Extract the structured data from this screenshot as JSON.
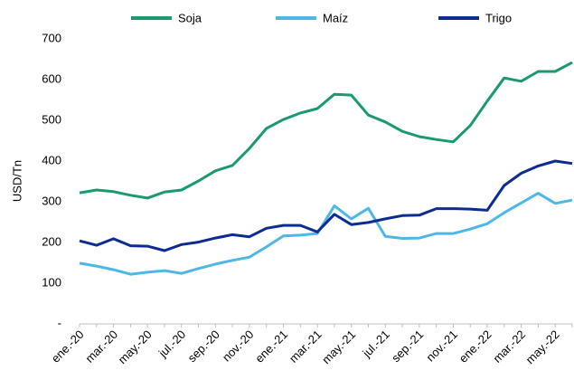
{
  "chart_data": {
    "type": "line",
    "y_label": "USD/Tn",
    "categories": [
      "ene.-20",
      null,
      "mar.-20",
      null,
      "may.-20",
      null,
      "jul.-20",
      null,
      "sep.-20",
      null,
      "nov.-20",
      null,
      "ene.-21",
      null,
      "mar.-21",
      null,
      "may.-21",
      null,
      "jul.-21",
      null,
      "sep.-21",
      null,
      "nov.-21",
      null,
      "ene.-22",
      null,
      "mar.-22",
      null,
      "may.-22",
      null
    ],
    "series": [
      {
        "name": "Soja",
        "color": "#1a9a6e",
        "values": [
          322,
          329,
          325,
          316,
          309,
          324,
          329,
          351,
          376,
          389,
          431,
          480,
          502,
          518,
          529,
          564,
          562,
          513,
          496,
          473,
          460,
          453,
          447,
          487,
          547,
          604,
          596,
          620,
          620,
          642
        ]
      },
      {
        "name": "Maíz",
        "color": "#4db8e8",
        "values": [
          149,
          142,
          133,
          122,
          127,
          131,
          124,
          136,
          147,
          156,
          164,
          189,
          216,
          218,
          222,
          290,
          258,
          284,
          215,
          210,
          211,
          222,
          222,
          233,
          246,
          273,
          297,
          321,
          296,
          304
        ]
      },
      {
        "name": "Trigo",
        "color": "#0d2c91",
        "values": [
          204,
          193,
          209,
          192,
          191,
          180,
          195,
          201,
          211,
          219,
          214,
          235,
          242,
          242,
          226,
          269,
          244,
          249,
          258,
          266,
          267,
          283,
          283,
          282,
          279,
          340,
          370,
          388,
          400,
          394
        ]
      }
    ],
    "ylim": [
      0,
      700
    ],
    "yticks": [
      {
        "value": 0,
        "label": "-"
      },
      100,
      200,
      300,
      400,
      500,
      600,
      700
    ],
    "legend": "top"
  }
}
